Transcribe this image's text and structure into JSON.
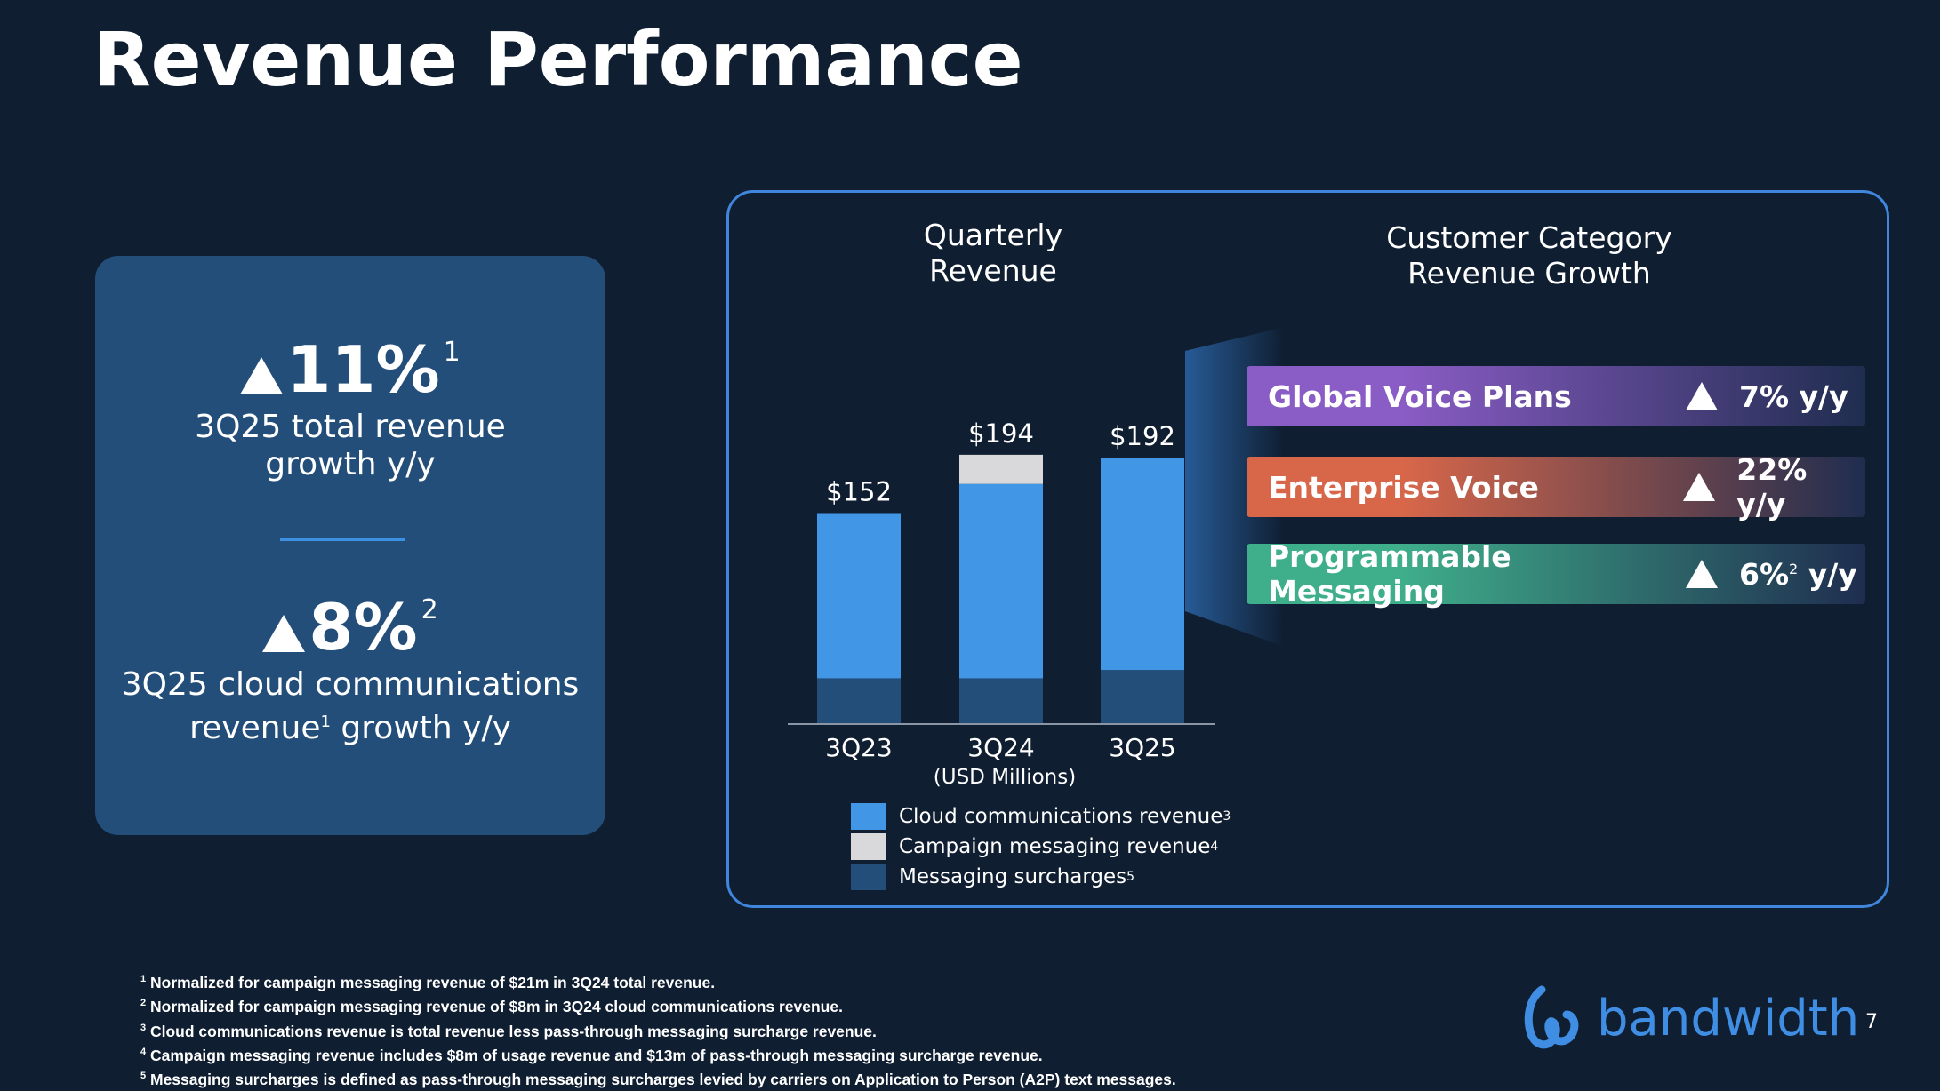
{
  "title": "Revenue Performance",
  "kpis": [
    {
      "value": "11%",
      "footnote": "1",
      "label_line1": "3Q25 total revenue",
      "label_line2": "growth y/y"
    },
    {
      "value": "8%",
      "footnote": "2",
      "label_line1": "3Q25 cloud communications",
      "label_line2_pre": "revenue",
      "label_line2_sup": "1",
      "label_line2_post": " growth y/y"
    }
  ],
  "chart_title_line1": "Quarterly",
  "chart_title_line2": "Revenue",
  "growth_title_line1": "Customer Category",
  "growth_title_line2": "Revenue Growth",
  "chart_data": {
    "type": "bar",
    "stacked": true,
    "categories": [
      "3Q23",
      "3Q24",
      "3Q25"
    ],
    "series": [
      {
        "name": "Messaging surcharges",
        "footnote": "5",
        "color": "#244e7a",
        "values": [
          33,
          33,
          39
        ]
      },
      {
        "name": "Cloud communications revenue",
        "footnote": "3",
        "color": "#4196e6",
        "values": [
          119,
          140,
          153
        ]
      },
      {
        "name": "Campaign messaging revenue",
        "footnote": "4",
        "color": "#d9d9db",
        "values": [
          0,
          21,
          0
        ]
      }
    ],
    "totals": [
      "$152",
      "$194",
      "$192"
    ],
    "xlabel": "(USD Millions)",
    "ylim": [
      0,
      200
    ]
  },
  "growth": [
    {
      "name": "Global Voice Plans",
      "value": "7% y/y",
      "value_sup": "",
      "color_start": "#8a5cc5",
      "color_end": "#1f2d4f"
    },
    {
      "name": "Enterprise Voice",
      "value": "22% y/y",
      "value_sup": "",
      "color_start": "#d8674a",
      "color_end": "#1f2d4f"
    },
    {
      "name": "Programmable Messaging",
      "value": "6%",
      "value_sup": "2",
      "value_post": " y/y",
      "color_start": "#3fae8a",
      "color_end": "#1f2d4f"
    }
  ],
  "footnotes": [
    {
      "num": "1",
      "text": "Normalized for campaign messaging revenue of $21m in 3Q24 total revenue."
    },
    {
      "num": "2",
      "text": "Normalized for campaign messaging revenue of $8m in 3Q24 cloud communications revenue."
    },
    {
      "num": "3",
      "text": "Cloud communications revenue is total revenue less pass-through messaging surcharge revenue."
    },
    {
      "num": "4",
      "text": "Campaign messaging revenue includes $8m of usage revenue and $13m of pass-through messaging surcharge revenue."
    },
    {
      "num": "5",
      "text": "Messaging surcharges is defined as pass-through messaging surcharges levied by carriers on Application to Person (A2P) text messages."
    }
  ],
  "logo_text": "bandwidth",
  "page_number": "7"
}
